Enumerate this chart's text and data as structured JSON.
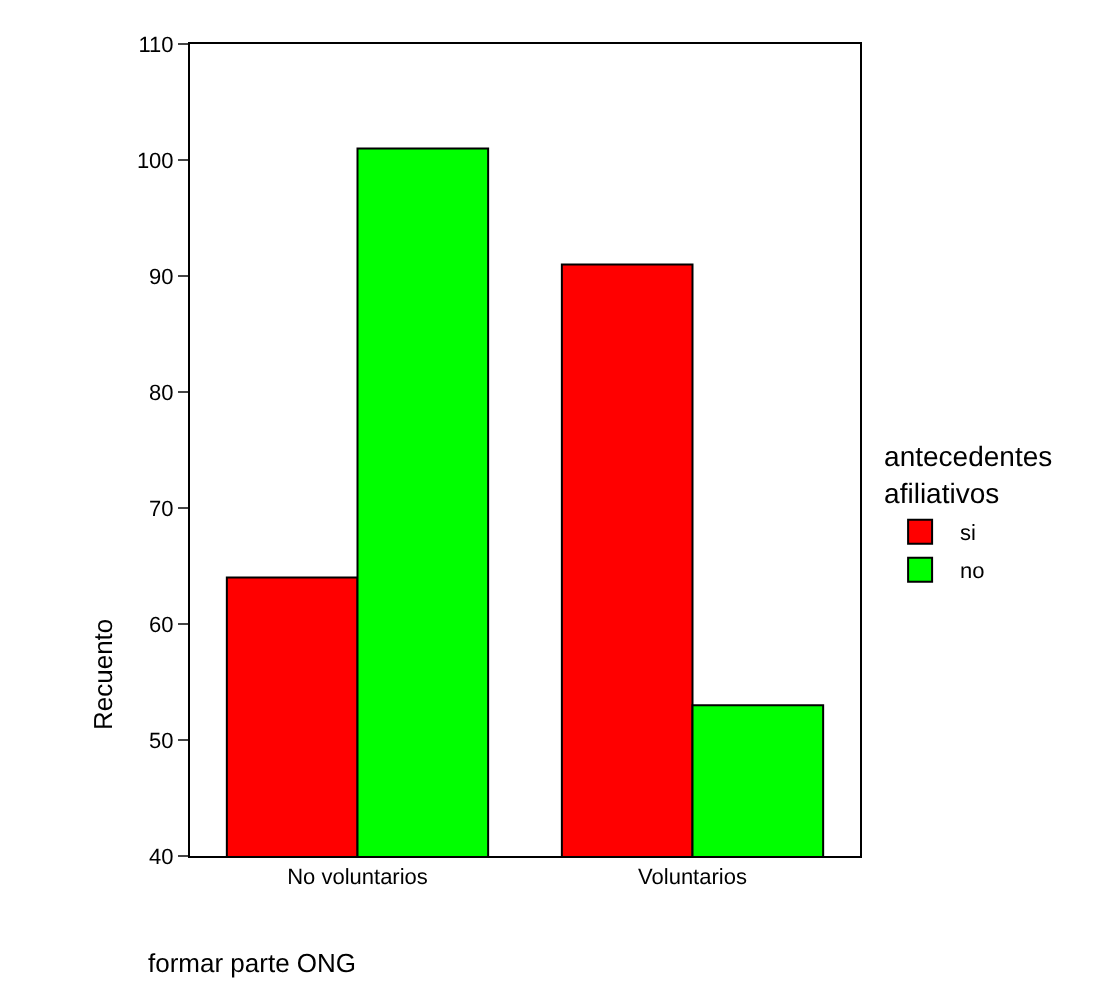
{
  "chart_data": {
    "type": "bar",
    "categories": [
      "No voluntarios",
      "Voluntarios"
    ],
    "series": [
      {
        "name": "si",
        "color": "#ff0000",
        "values": [
          64,
          91
        ]
      },
      {
        "name": "no",
        "color": "#00ff00",
        "values": [
          101,
          53
        ]
      }
    ],
    "xlabel": "formar parte ONG",
    "ylabel": "Recuento",
    "legend_title": "antecedentes afiliativos",
    "ylim": [
      40,
      110
    ],
    "yticks": [
      40,
      50,
      60,
      70,
      80,
      90,
      100,
      110
    ],
    "legend": "right"
  }
}
